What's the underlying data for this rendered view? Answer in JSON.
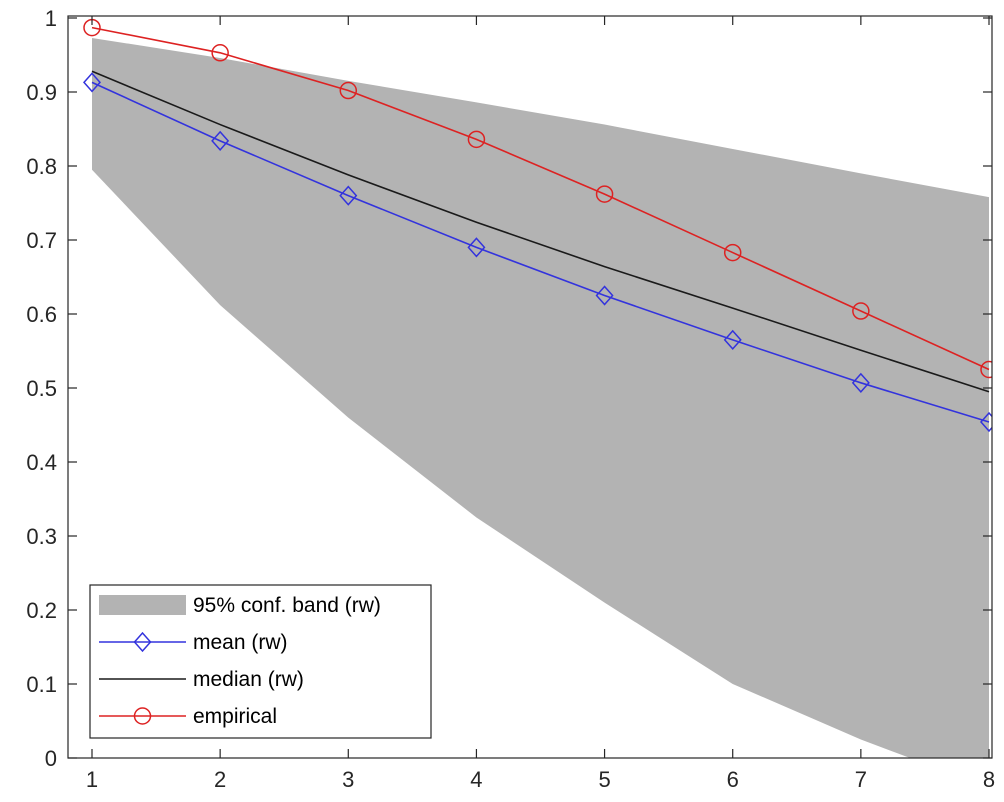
{
  "chart_data": {
    "type": "line",
    "title": "",
    "xlabel": "",
    "ylabel": "",
    "xlim": [
      1,
      8
    ],
    "ylim": [
      0,
      1
    ],
    "x_ticks": [
      1,
      2,
      3,
      4,
      5,
      6,
      7,
      8
    ],
    "x_tick_labels": [
      "1",
      "2",
      "3",
      "4",
      "5",
      "6",
      "7",
      "8"
    ],
    "y_ticks": [
      0,
      0.1,
      0.2,
      0.3,
      0.4,
      0.5,
      0.6,
      0.7,
      0.8,
      0.9,
      1
    ],
    "y_tick_labels": [
      "0",
      "0.1",
      "0.2",
      "0.3",
      "0.4",
      "0.5",
      "0.6",
      "0.7",
      "0.8",
      "0.9",
      "1"
    ],
    "grid": false,
    "legend_position": "bottom-left",
    "x": [
      1,
      2,
      3,
      4,
      5,
      6,
      7,
      8
    ],
    "band": {
      "name": "95% conf. band (rw)",
      "color": "#b3b3b3",
      "upper": [
        0.973,
        0.946,
        0.915,
        0.886,
        0.856,
        0.823,
        0.79,
        0.758
      ],
      "lower": [
        0.795,
        0.612,
        0.46,
        0.325,
        0.21,
        0.1,
        0.025,
        -0.04
      ]
    },
    "series": [
      {
        "name": "mean (rw)",
        "color": "#3333dd",
        "marker": "diamond",
        "values": [
          0.913,
          0.834,
          0.76,
          0.69,
          0.625,
          0.565,
          0.507,
          0.454
        ]
      },
      {
        "name": "median (rw)",
        "color": "#1a1a1a",
        "marker": "none",
        "values": [
          0.928,
          0.856,
          0.788,
          0.724,
          0.664,
          0.608,
          0.551,
          0.495
        ]
      },
      {
        "name": "empirical",
        "color": "#dd2222",
        "marker": "circle",
        "values": [
          0.987,
          0.953,
          0.902,
          0.836,
          0.762,
          0.683,
          0.604,
          0.525
        ]
      }
    ]
  }
}
